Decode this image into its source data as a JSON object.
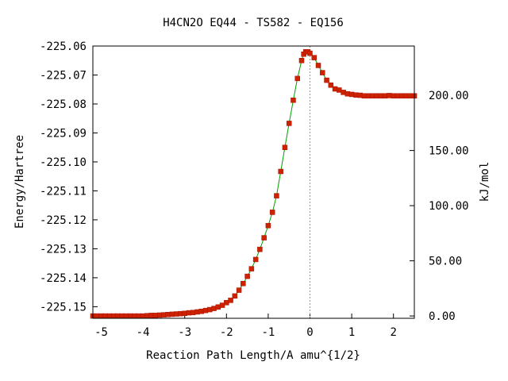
{
  "chart_data": {
    "type": "line",
    "title": "H4CN2O   EQ44 - TS582 - EQ156",
    "xlabel": "Reaction Path Length/A amu^{1/2}",
    "ylabel": "Energy/Hartree",
    "y2label": "kJ/mol",
    "xlim": [
      -5.2,
      2.5
    ],
    "ylim": [
      -225.154,
      -225.06
    ],
    "x_ticks": [
      -5,
      -4,
      -3,
      -2,
      -1,
      0,
      1,
      2
    ],
    "x_tick_labels": [
      "-5",
      "-4",
      "-3",
      "-2",
      "-1",
      "0",
      "1",
      "2"
    ],
    "y_ticks": [
      -225.06,
      -225.07,
      -225.08,
      -225.09,
      -225.1,
      -225.11,
      -225.12,
      -225.13,
      -225.14,
      -225.15
    ],
    "y_tick_labels": [
      "-225.06",
      "-225.07",
      "-225.08",
      "-225.09",
      "-225.10",
      "-225.11",
      "-225.12",
      "-225.13",
      "-225.14",
      "-225.15"
    ],
    "y2_ticks": [
      0,
      50,
      100,
      150,
      200
    ],
    "y2_tick_labels": [
      "0.00",
      "50.00",
      "100.00",
      "150.00",
      "200.00"
    ],
    "y2_reference_energy": -225.1532,
    "hartree_to_kj": 2625.5,
    "ts_x": 0.0,
    "grid": false,
    "series": [
      {
        "color": "#cc2200",
        "line_color": "#00a000",
        "x": [
          -5.2,
          -5.1,
          -5.0,
          -4.9,
          -4.8,
          -4.7,
          -4.6,
          -4.5,
          -4.4,
          -4.3,
          -4.2,
          -4.1,
          -4.0,
          -3.9,
          -3.8,
          -3.7,
          -3.6,
          -3.5,
          -3.4,
          -3.3,
          -3.2,
          -3.1,
          -3.0,
          -2.9,
          -2.8,
          -2.7,
          -2.6,
          -2.5,
          -2.4,
          -2.3,
          -2.2,
          -2.1,
          -2.0,
          -1.9,
          -1.8,
          -1.7,
          -1.6,
          -1.5,
          -1.4,
          -1.3,
          -1.2,
          -1.1,
          -1.0,
          -0.9,
          -0.8,
          -0.7,
          -0.6,
          -0.5,
          -0.4,
          -0.3,
          -0.2,
          -0.15,
          -0.1,
          -0.05,
          0.0,
          0.1,
          0.2,
          0.3,
          0.4,
          0.5,
          0.6,
          0.7,
          0.8,
          0.9,
          1.0,
          1.1,
          1.2,
          1.3,
          1.4,
          1.5,
          1.6,
          1.7,
          1.8,
          1.9,
          2.0,
          2.1,
          2.2,
          2.3,
          2.4,
          2.5
        ],
        "y": [
          -225.1532,
          -225.1532,
          -225.1532,
          -225.1532,
          -225.1532,
          -225.1532,
          -225.1532,
          -225.1532,
          -225.1532,
          -225.1532,
          -225.1532,
          -225.1532,
          -225.1532,
          -225.1531,
          -225.153,
          -225.153,
          -225.1529,
          -225.1528,
          -225.1527,
          -225.1526,
          -225.1525,
          -225.1524,
          -225.1523,
          -225.1521,
          -225.152,
          -225.1518,
          -225.1516,
          -225.1513,
          -225.151,
          -225.1506,
          -225.1501,
          -225.1495,
          -225.1486,
          -225.1478,
          -225.1463,
          -225.1443,
          -225.142,
          -225.1395,
          -225.1369,
          -225.1337,
          -225.1302,
          -225.1262,
          -225.122,
          -225.1174,
          -225.1117,
          -225.1033,
          -225.095,
          -225.0867,
          -225.0787,
          -225.0712,
          -225.065,
          -225.0628,
          -225.062,
          -225.062,
          -225.0625,
          -225.064,
          -225.0667,
          -225.0692,
          -225.0718,
          -225.0735,
          -225.0748,
          -225.0752,
          -225.076,
          -225.0765,
          -225.0767,
          -225.0769,
          -225.077,
          -225.0772,
          -225.0772,
          -225.0772,
          -225.0772,
          -225.0772,
          -225.0772,
          -225.0771,
          -225.0772,
          -225.0772,
          -225.0772,
          -225.0772,
          -225.0772,
          -225.0772
        ]
      }
    ]
  }
}
